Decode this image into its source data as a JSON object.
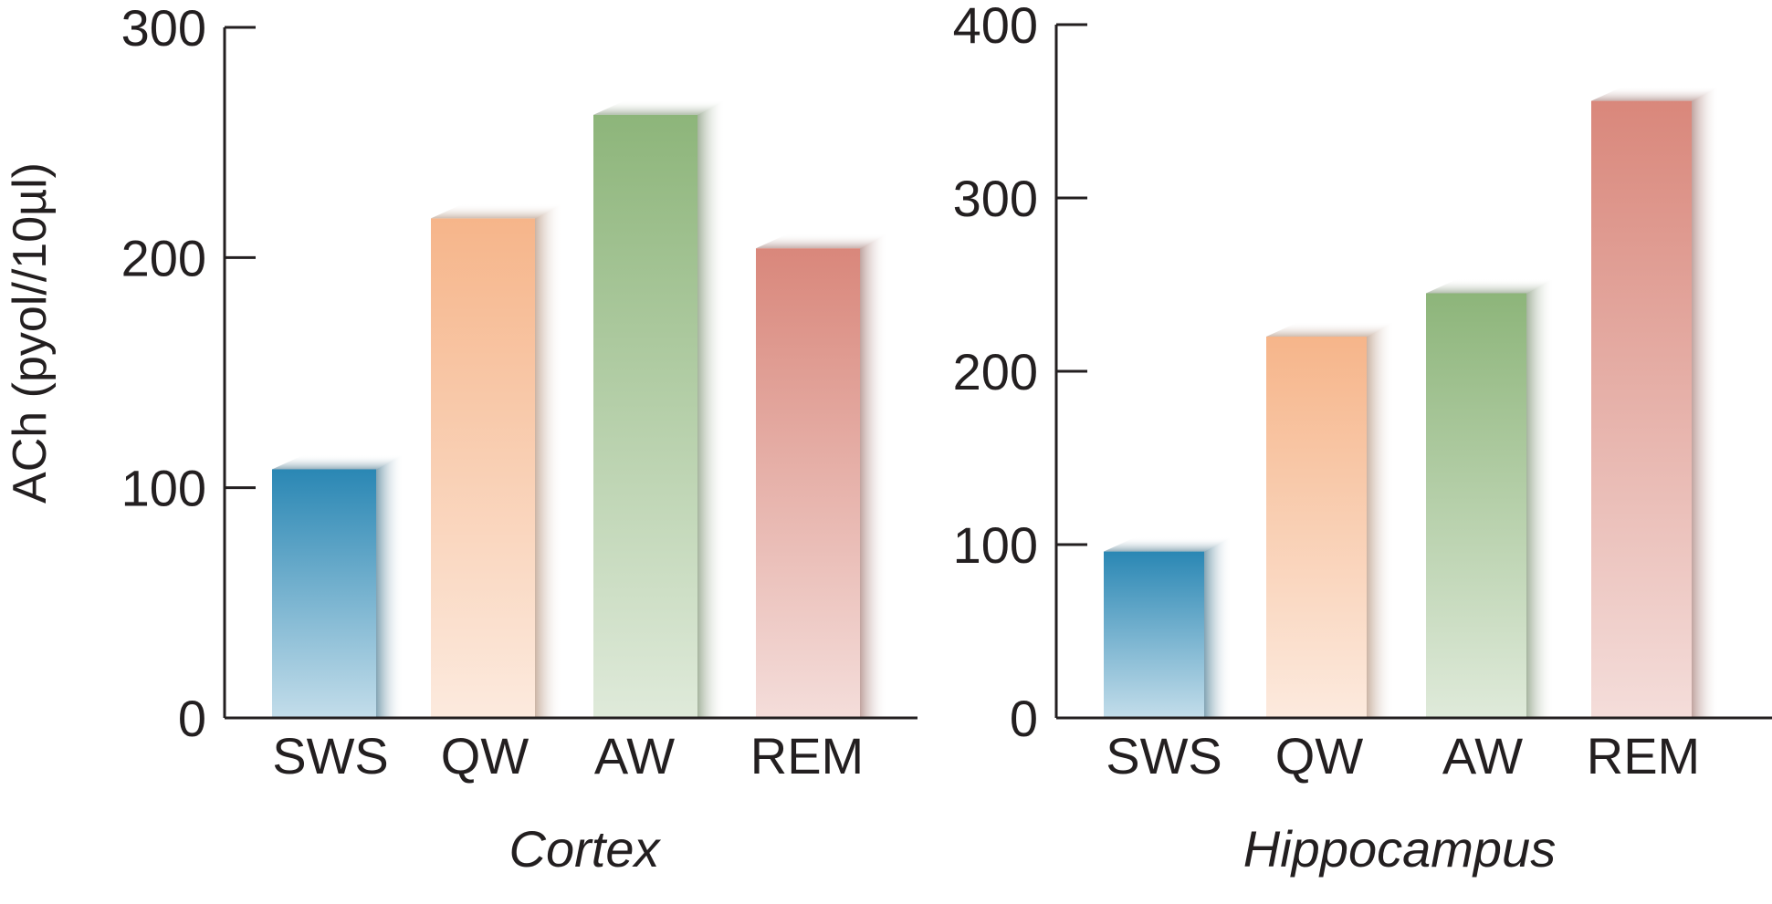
{
  "chart_data": [
    {
      "type": "bar",
      "title": "Cortex",
      "xlabel": "Cortex",
      "ylabel": "ACh (pyol//10µl)",
      "categories": [
        "SWS",
        "QW",
        "AW",
        "REM"
      ],
      "values": [
        108,
        217,
        262,
        204
      ],
      "ylim": [
        0,
        300
      ],
      "yticks": [
        "0",
        "100",
        "200",
        "300"
      ],
      "grid": false,
      "legend": "none",
      "colors": [
        "#2a87b4",
        "#f6b58a",
        "#8db57a",
        "#d9877b"
      ]
    },
    {
      "type": "bar",
      "title": "Hippocampus",
      "xlabel": "Hippocampus",
      "ylabel": "",
      "categories": [
        "SWS",
        "QW",
        "AW",
        "REM"
      ],
      "values": [
        96,
        220,
        245,
        356
      ],
      "ylim": [
        0,
        400
      ],
      "yticks": [
        "0",
        "100",
        "200",
        "300",
        "400"
      ],
      "grid": false,
      "legend": "none",
      "colors": [
        "#2a87b4",
        "#f6b58a",
        "#8db57a",
        "#d9877b"
      ]
    }
  ]
}
